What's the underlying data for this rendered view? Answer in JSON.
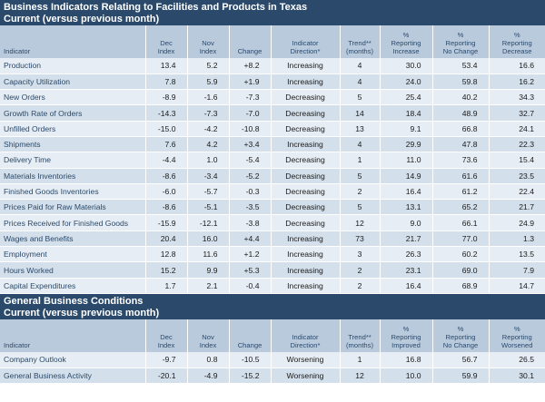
{
  "section1": {
    "title_line1": "Business Indicators Relating to Facilities and Products in Texas",
    "title_line2": "Current (versus previous month)"
  },
  "section2": {
    "title_line1": "General Business Conditions",
    "title_line2": "Current (versus previous month)"
  },
  "headers1": {
    "indicator": "Indicator",
    "dec": [
      "Dec",
      "Index"
    ],
    "nov": [
      "Nov",
      "Index"
    ],
    "change": "Change",
    "direction": [
      "Indicator",
      "Direction*"
    ],
    "trend": [
      "Trend**",
      "(months)"
    ],
    "pct_a": [
      "%",
      "Reporting",
      "Increase"
    ],
    "pct_b": [
      "%",
      "Reporting",
      "No Change"
    ],
    "pct_c": [
      "%",
      "Reporting",
      "Decrease"
    ]
  },
  "headers2": {
    "indicator": "Indicator",
    "dec": [
      "Dec",
      "Index"
    ],
    "nov": [
      "Nov",
      "Index"
    ],
    "change": "Change",
    "direction": [
      "Indicator",
      "Direction*"
    ],
    "trend": [
      "Trend**",
      "(months)"
    ],
    "pct_a": [
      "%",
      "Reporting",
      "Improved"
    ],
    "pct_b": [
      "%",
      "Reporting",
      "No Change"
    ],
    "pct_c": [
      "%",
      "Reporting",
      "Worsened"
    ]
  },
  "rows1": [
    [
      "Production",
      "13.4",
      "5.2",
      "+8.2",
      "Increasing",
      "4",
      "30.0",
      "53.4",
      "16.6"
    ],
    [
      "Capacity Utilization",
      "7.8",
      "5.9",
      "+1.9",
      "Increasing",
      "4",
      "24.0",
      "59.8",
      "16.2"
    ],
    [
      "New Orders",
      "-8.9",
      "-1.6",
      "-7.3",
      "Decreasing",
      "5",
      "25.4",
      "40.2",
      "34.3"
    ],
    [
      "Growth Rate of Orders",
      "-14.3",
      "-7.3",
      "-7.0",
      "Decreasing",
      "14",
      "18.4",
      "48.9",
      "32.7"
    ],
    [
      "Unfilled Orders",
      "-15.0",
      "-4.2",
      "-10.8",
      "Decreasing",
      "13",
      "9.1",
      "66.8",
      "24.1"
    ],
    [
      "Shipments",
      "7.6",
      "4.2",
      "+3.4",
      "Increasing",
      "4",
      "29.9",
      "47.8",
      "22.3"
    ],
    [
      "Delivery Time",
      "-4.4",
      "1.0",
      "-5.4",
      "Decreasing",
      "1",
      "11.0",
      "73.6",
      "15.4"
    ],
    [
      "Materials Inventories",
      "-8.6",
      "-3.4",
      "-5.2",
      "Decreasing",
      "5",
      "14.9",
      "61.6",
      "23.5"
    ],
    [
      "Finished Goods Inventories",
      "-6.0",
      "-5.7",
      "-0.3",
      "Decreasing",
      "2",
      "16.4",
      "61.2",
      "22.4"
    ],
    [
      "Prices Paid for Raw Materials",
      "-8.6",
      "-5.1",
      "-3.5",
      "Decreasing",
      "5",
      "13.1",
      "65.2",
      "21.7"
    ],
    [
      "Prices Received for Finished Goods",
      "-15.9",
      "-12.1",
      "-3.8",
      "Decreasing",
      "12",
      "9.0",
      "66.1",
      "24.9"
    ],
    [
      "Wages and Benefits",
      "20.4",
      "16.0",
      "+4.4",
      "Increasing",
      "73",
      "21.7",
      "77.0",
      "1.3"
    ],
    [
      "Employment",
      "12.8",
      "11.6",
      "+1.2",
      "Increasing",
      "3",
      "26.3",
      "60.2",
      "13.5"
    ],
    [
      "Hours Worked",
      "15.2",
      "9.9",
      "+5.3",
      "Increasing",
      "2",
      "23.1",
      "69.0",
      "7.9"
    ],
    [
      "Capital Expenditures",
      "1.7",
      "2.1",
      "-0.4",
      "Increasing",
      "2",
      "16.4",
      "68.9",
      "14.7"
    ]
  ],
  "rows2": [
    [
      "Company Outlook",
      "-9.7",
      "0.8",
      "-10.5",
      "Worsening",
      "1",
      "16.8",
      "56.7",
      "26.5"
    ],
    [
      "General Business Activity",
      "-20.1",
      "-4.9",
      "-15.2",
      "Worsening",
      "12",
      "10.0",
      "59.9",
      "30.1"
    ]
  ],
  "colors": {
    "title_bg": "#2b4a6b",
    "header_bg": "#b9cadd",
    "row_odd": "#e6edf4",
    "row_even": "#d3dfea",
    "label_text": "#2b4a6b"
  }
}
